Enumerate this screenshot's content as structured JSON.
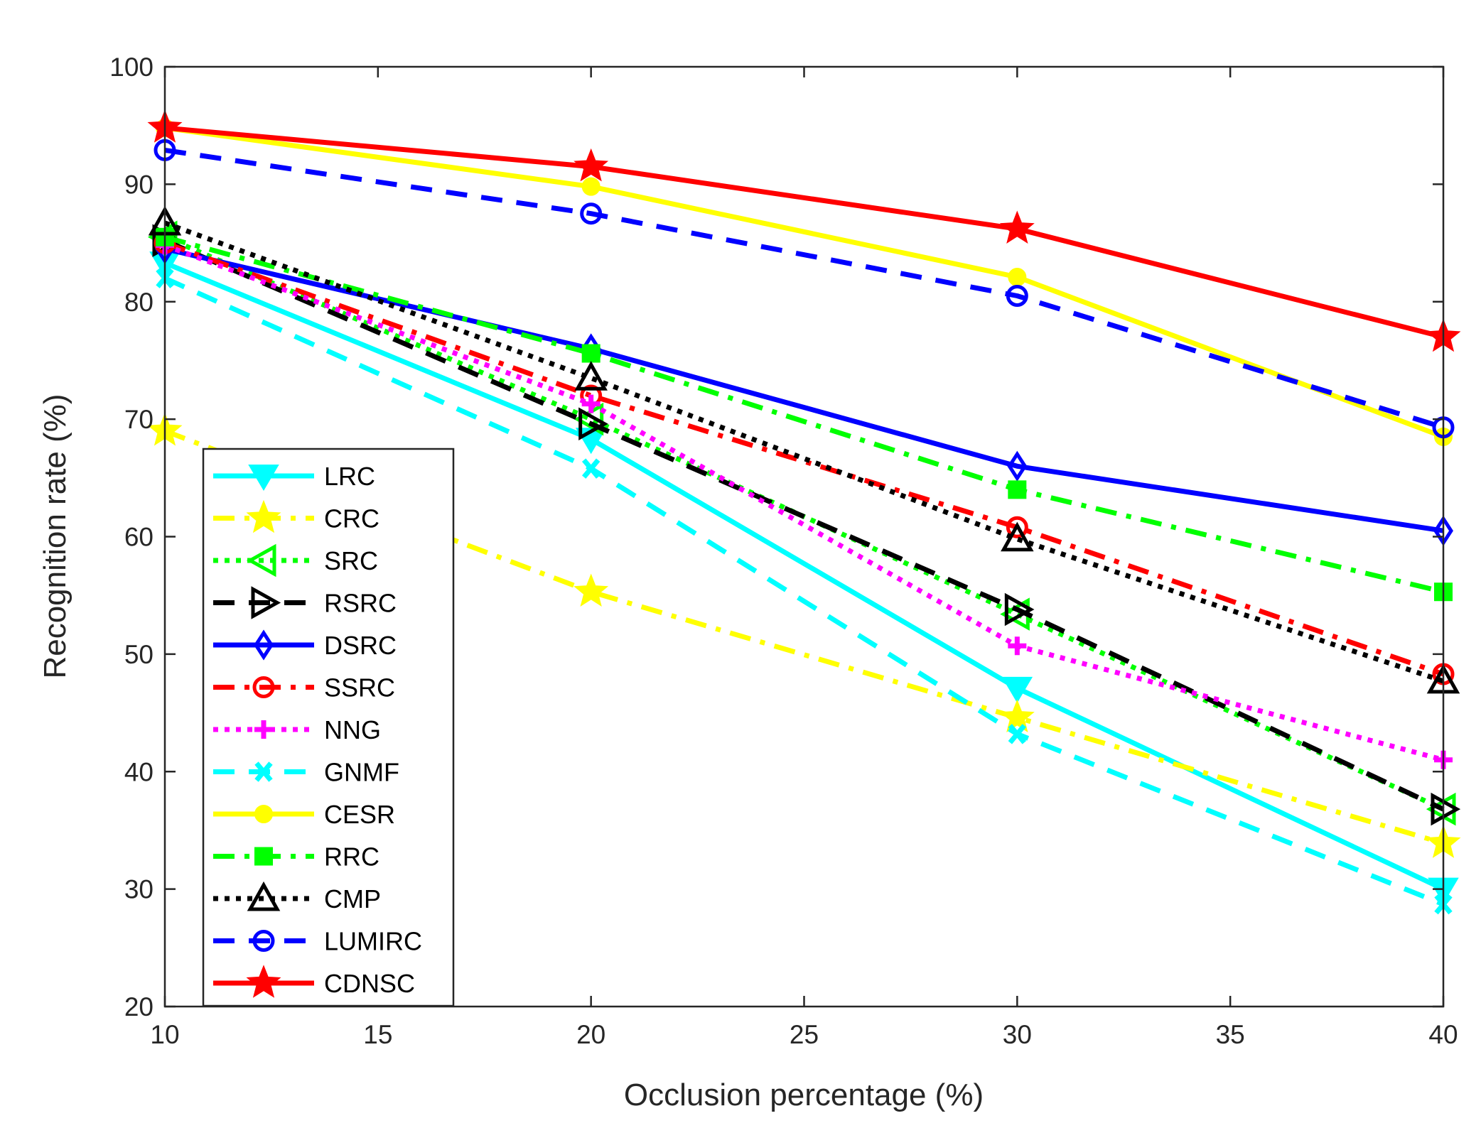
{
  "chart_data": {
    "type": "line",
    "title": "",
    "xlabel": "Occlusion percentage (%)",
    "ylabel": "Recognition rate (%)",
    "xlim": [
      10,
      40
    ],
    "ylim": [
      20,
      100
    ],
    "xticks": [
      10,
      15,
      20,
      25,
      30,
      35,
      40
    ],
    "yticks": [
      20,
      30,
      40,
      50,
      60,
      70,
      80,
      90,
      100
    ],
    "xtick_labels": [
      "10",
      "15",
      "20",
      "25",
      "30",
      "35",
      "40"
    ],
    "ytick_labels": [
      "20",
      "30",
      "40",
      "50",
      "60",
      "70",
      "80",
      "90",
      "100"
    ],
    "grid": false,
    "legend_position": "lower-left",
    "x": [
      10,
      20,
      30,
      40
    ],
    "series": [
      {
        "name": "LRC",
        "values": [
          83.3,
          68.3,
          47.1,
          30.0
        ],
        "color": "#00ffff",
        "dash": "solid",
        "marker": "triangle-down"
      },
      {
        "name": "CRC",
        "values": [
          69.0,
          55.3,
          44.6,
          33.9
        ],
        "color": "#ffff00",
        "dash": "dashdot",
        "marker": "star"
      },
      {
        "name": "SRC",
        "values": [
          85.5,
          70.0,
          53.4,
          36.8
        ],
        "color": "#00ff00",
        "dash": "dotted",
        "marker": "triangle-left"
      },
      {
        "name": "RSRC",
        "values": [
          85.2,
          69.6,
          53.8,
          36.8
        ],
        "color": "#000000",
        "dash": "dashed",
        "marker": "triangle-right"
      },
      {
        "name": "DSRC",
        "values": [
          84.5,
          76.0,
          66.0,
          60.5
        ],
        "color": "#0000ff",
        "dash": "solid",
        "marker": "diamond"
      },
      {
        "name": "SSRC",
        "values": [
          85.0,
          72.0,
          60.8,
          48.3
        ],
        "color": "#ff0000",
        "dash": "dashdot",
        "marker": "circle"
      },
      {
        "name": "NNG",
        "values": [
          84.8,
          71.3,
          50.7,
          41.0
        ],
        "color": "#ff00ff",
        "dash": "dotted",
        "marker": "plus"
      },
      {
        "name": "GNMF",
        "values": [
          82.0,
          65.8,
          43.2,
          28.7
        ],
        "color": "#00ffff",
        "dash": "dashed",
        "marker": "x-mark"
      },
      {
        "name": "CESR",
        "values": [
          94.8,
          89.8,
          82.1,
          68.5
        ],
        "color": "#ffff00",
        "dash": "solid",
        "marker": "dot"
      },
      {
        "name": "RRC",
        "values": [
          85.5,
          75.6,
          64.0,
          55.3
        ],
        "color": "#00ff00",
        "dash": "dashdot",
        "marker": "square"
      },
      {
        "name": "CMP",
        "values": [
          86.7,
          73.5,
          59.8,
          47.7
        ],
        "color": "#000000",
        "dash": "dotted",
        "marker": "triangle-up"
      },
      {
        "name": "LUMIRC",
        "values": [
          92.9,
          87.5,
          80.5,
          69.3
        ],
        "color": "#0000ff",
        "dash": "dashed",
        "marker": "circle"
      },
      {
        "name": "CDNSC",
        "values": [
          94.8,
          91.5,
          86.2,
          77.0
        ],
        "color": "#ff0000",
        "dash": "solid",
        "marker": "star"
      }
    ]
  }
}
